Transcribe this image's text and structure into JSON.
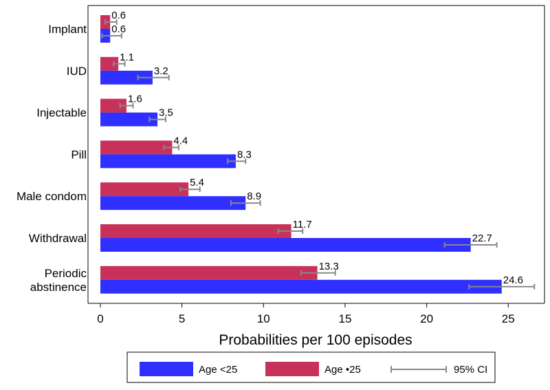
{
  "chart_data": {
    "type": "bar",
    "orientation": "horizontal",
    "categories": [
      "Implant",
      "IUD",
      "Injectable",
      "Pill",
      "Male condom",
      "Withdrawal",
      "Periodic abstinence"
    ],
    "series": [
      {
        "name": "Age ≥25",
        "color": "#c8325a",
        "values": [
          0.6,
          1.1,
          1.6,
          4.4,
          5.4,
          11.7,
          13.3
        ],
        "ci": [
          [
            0.3,
            1.0
          ],
          [
            0.8,
            1.5
          ],
          [
            1.2,
            2.0
          ],
          [
            3.9,
            4.8
          ],
          [
            4.9,
            6.1
          ],
          [
            10.9,
            12.4
          ],
          [
            12.3,
            14.4
          ]
        ]
      },
      {
        "name": "Age <25",
        "color": "#2f2fff",
        "values": [
          0.6,
          3.2,
          3.5,
          8.3,
          8.9,
          22.7,
          24.6
        ],
        "ci": [
          [
            0.1,
            1.3
          ],
          [
            2.3,
            4.2
          ],
          [
            3.0,
            4.0
          ],
          [
            7.8,
            8.9
          ],
          [
            8.0,
            9.8
          ],
          [
            21.1,
            24.3
          ],
          [
            22.6,
            26.6
          ]
        ]
      }
    ],
    "data_labels": {
      "Age ≥25": [
        "0.6",
        "1.1",
        "1.6",
        "4.4",
        "5.4",
        "11.7",
        "13.3"
      ],
      "Age <25": [
        "0.6",
        "3.2",
        "3.5",
        "8.3",
        "8.9",
        "22.7",
        "24.6"
      ]
    },
    "xlabel": "Probabilities per 100 episodes",
    "xlim": [
      0,
      26.8
    ],
    "xticks": [
      0,
      5,
      10,
      15,
      20,
      25
    ],
    "grid": false,
    "legend": {
      "placement": "bottom",
      "items": [
        "Age <25",
        "Age •25",
        "95% CI"
      ],
      "ci_color": "#888888"
    }
  }
}
